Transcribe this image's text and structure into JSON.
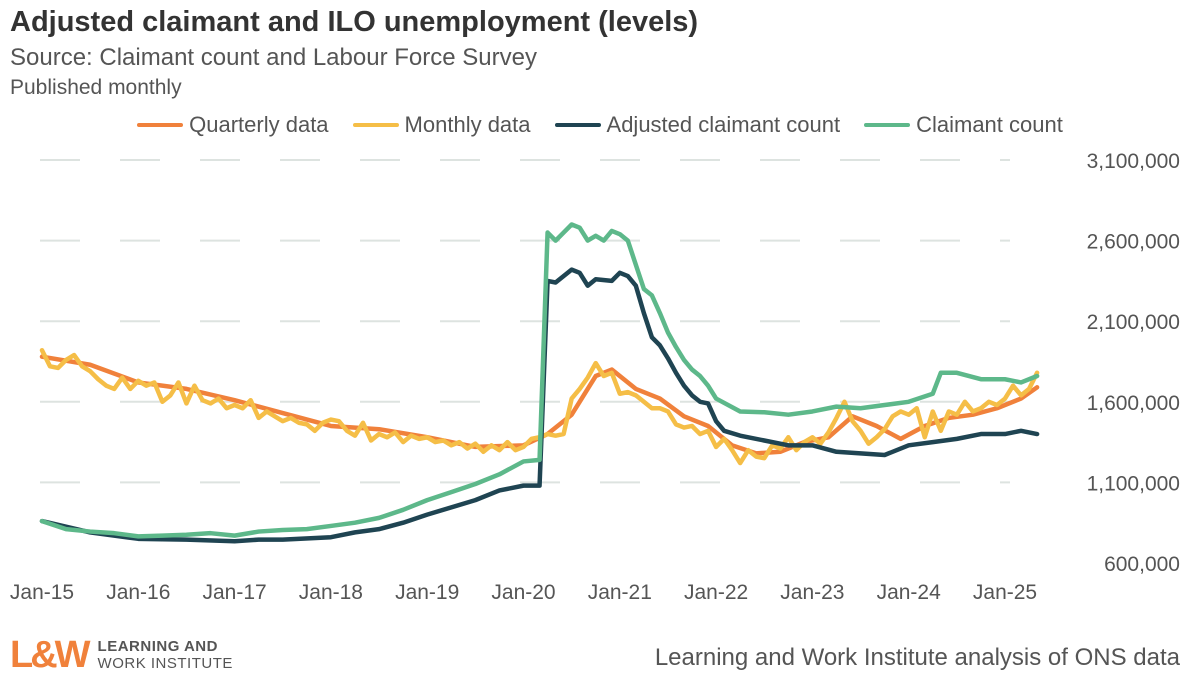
{
  "chart_data": {
    "type": "line",
    "title": "Adjusted claimant and ILO unemployment (levels)",
    "subtitle": "Source: Claimant count and Labour Force Survey",
    "frequency_note": "Published monthly",
    "xlabel": "",
    "ylabel": "",
    "x_start": "2015-01",
    "x_end": "2025-05",
    "x_ticks": [
      "Jan-15",
      "Jan-16",
      "Jan-17",
      "Jan-18",
      "Jan-19",
      "Jan-20",
      "Jan-21",
      "Jan-22",
      "Jan-23",
      "Jan-24",
      "Jan-25"
    ],
    "y_ticks": [
      "3,100,000",
      "2,600,000",
      "2,100,000",
      "1,600,000",
      "1,100,000",
      "600,000"
    ],
    "y_tick_values": [
      3100000,
      2600000,
      2100000,
      1600000,
      1100000,
      600000
    ],
    "ylim": [
      600000,
      3100000
    ],
    "grid": "horizontal dashed",
    "legend_position": "top",
    "series": [
      {
        "name": "Quarterly data",
        "color": "#F0813B",
        "points": [
          [
            "2015-01",
            1880000
          ],
          [
            "2015-07",
            1830000
          ],
          [
            "2016-01",
            1720000
          ],
          [
            "2016-07",
            1680000
          ],
          [
            "2017-01",
            1610000
          ],
          [
            "2017-07",
            1530000
          ],
          [
            "2018-01",
            1450000
          ],
          [
            "2018-07",
            1430000
          ],
          [
            "2019-01",
            1380000
          ],
          [
            "2019-07",
            1320000
          ],
          [
            "2020-01",
            1330000
          ],
          [
            "2020-04",
            1400000
          ],
          [
            "2020-07",
            1520000
          ],
          [
            "2020-10",
            1760000
          ],
          [
            "2020-12",
            1800000
          ],
          [
            "2021-03",
            1680000
          ],
          [
            "2021-06",
            1620000
          ],
          [
            "2021-09",
            1510000
          ],
          [
            "2021-12",
            1450000
          ],
          [
            "2022-03",
            1330000
          ],
          [
            "2022-06",
            1280000
          ],
          [
            "2022-09",
            1290000
          ],
          [
            "2022-12",
            1350000
          ],
          [
            "2023-03",
            1380000
          ],
          [
            "2023-06",
            1510000
          ],
          [
            "2023-09",
            1450000
          ],
          [
            "2023-12",
            1370000
          ],
          [
            "2024-03",
            1450000
          ],
          [
            "2024-06",
            1500000
          ],
          [
            "2024-09",
            1520000
          ],
          [
            "2024-12",
            1560000
          ],
          [
            "2025-03",
            1620000
          ],
          [
            "2025-05",
            1690000
          ]
        ]
      },
      {
        "name": "Monthly data",
        "color": "#F5BE47",
        "monthly_values_thousands": [
          1920,
          1820,
          1810,
          1860,
          1890,
          1820,
          1790,
          1740,
          1700,
          1680,
          1750,
          1680,
          1730,
          1700,
          1720,
          1600,
          1640,
          1720,
          1590,
          1700,
          1610,
          1590,
          1620,
          1560,
          1580,
          1560,
          1610,
          1500,
          1540,
          1510,
          1480,
          1500,
          1470,
          1460,
          1420,
          1470,
          1490,
          1480,
          1420,
          1390,
          1470,
          1360,
          1400,
          1380,
          1410,
          1350,
          1390,
          1370,
          1380,
          1350,
          1360,
          1330,
          1350,
          1310,
          1340,
          1290,
          1330,
          1300,
          1350,
          1300,
          1320,
          1370,
          1380,
          1400,
          1390,
          1400,
          1620,
          1680,
          1750,
          1840,
          1760,
          1780,
          1650,
          1660,
          1640,
          1600,
          1560,
          1560,
          1540,
          1460,
          1440,
          1450,
          1400,
          1420,
          1320,
          1370,
          1300,
          1220,
          1300,
          1260,
          1250,
          1330,
          1310,
          1380,
          1300,
          1350,
          1380,
          1340,
          1410,
          1500,
          1600,
          1480,
          1420,
          1340,
          1380,
          1430,
          1510,
          1540,
          1520,
          1560,
          1380,
          1540,
          1420,
          1540,
          1520,
          1600,
          1540,
          1560,
          1600,
          1580,
          1620,
          1700,
          1640,
          1680,
          1780
        ]
      },
      {
        "name": "Adjusted claimant count",
        "color": "#1F4452",
        "points": [
          [
            "2015-01",
            860000
          ],
          [
            "2015-07",
            790000
          ],
          [
            "2016-01",
            750000
          ],
          [
            "2016-07",
            745000
          ],
          [
            "2017-01",
            735000
          ],
          [
            "2017-04",
            745000
          ],
          [
            "2017-07",
            745000
          ],
          [
            "2018-01",
            760000
          ],
          [
            "2018-04",
            790000
          ],
          [
            "2018-07",
            810000
          ],
          [
            "2018-10",
            850000
          ],
          [
            "2019-01",
            900000
          ],
          [
            "2019-07",
            990000
          ],
          [
            "2019-10",
            1050000
          ],
          [
            "2020-01",
            1080000
          ],
          [
            "2020-03",
            1080000
          ],
          [
            "2020-04",
            2350000
          ],
          [
            "2020-05",
            2340000
          ],
          [
            "2020-07",
            2420000
          ],
          [
            "2020-08",
            2400000
          ],
          [
            "2020-09",
            2320000
          ],
          [
            "2020-10",
            2360000
          ],
          [
            "2020-12",
            2350000
          ],
          [
            "2021-01",
            2400000
          ],
          [
            "2021-02",
            2380000
          ],
          [
            "2021-03",
            2320000
          ],
          [
            "2021-04",
            2150000
          ],
          [
            "2021-05",
            2000000
          ],
          [
            "2021-06",
            1950000
          ],
          [
            "2021-07",
            1870000
          ],
          [
            "2021-08",
            1780000
          ],
          [
            "2021-09",
            1700000
          ],
          [
            "2021-10",
            1640000
          ],
          [
            "2021-11",
            1600000
          ],
          [
            "2021-12",
            1590000
          ],
          [
            "2022-01",
            1480000
          ],
          [
            "2022-02",
            1420000
          ],
          [
            "2022-04",
            1390000
          ],
          [
            "2022-07",
            1360000
          ],
          [
            "2022-10",
            1330000
          ],
          [
            "2023-01",
            1330000
          ],
          [
            "2023-04",
            1290000
          ],
          [
            "2023-07",
            1280000
          ],
          [
            "2023-10",
            1270000
          ],
          [
            "2024-01",
            1330000
          ],
          [
            "2024-04",
            1350000
          ],
          [
            "2024-07",
            1370000
          ],
          [
            "2024-10",
            1400000
          ],
          [
            "2025-01",
            1400000
          ],
          [
            "2025-03",
            1420000
          ],
          [
            "2025-05",
            1400000
          ]
        ]
      },
      {
        "name": "Claimant count",
        "color": "#5DB88A",
        "points": [
          [
            "2015-01",
            860000
          ],
          [
            "2015-04",
            810000
          ],
          [
            "2015-07",
            795000
          ],
          [
            "2015-10",
            785000
          ],
          [
            "2016-01",
            765000
          ],
          [
            "2016-04",
            770000
          ],
          [
            "2016-07",
            775000
          ],
          [
            "2016-10",
            785000
          ],
          [
            "2017-01",
            770000
          ],
          [
            "2017-04",
            795000
          ],
          [
            "2017-07",
            805000
          ],
          [
            "2017-10",
            810000
          ],
          [
            "2018-01",
            830000
          ],
          [
            "2018-04",
            850000
          ],
          [
            "2018-07",
            880000
          ],
          [
            "2018-10",
            930000
          ],
          [
            "2019-01",
            990000
          ],
          [
            "2019-04",
            1040000
          ],
          [
            "2019-07",
            1090000
          ],
          [
            "2019-10",
            1150000
          ],
          [
            "2020-01",
            1230000
          ],
          [
            "2020-03",
            1240000
          ],
          [
            "2020-04",
            2650000
          ],
          [
            "2020-05",
            2600000
          ],
          [
            "2020-06",
            2650000
          ],
          [
            "2020-07",
            2700000
          ],
          [
            "2020-08",
            2680000
          ],
          [
            "2020-09",
            2600000
          ],
          [
            "2020-10",
            2630000
          ],
          [
            "2020-11",
            2600000
          ],
          [
            "2020-12",
            2660000
          ],
          [
            "2021-01",
            2640000
          ],
          [
            "2021-02",
            2600000
          ],
          [
            "2021-03",
            2450000
          ],
          [
            "2021-04",
            2300000
          ],
          [
            "2021-05",
            2260000
          ],
          [
            "2021-06",
            2150000
          ],
          [
            "2021-07",
            2030000
          ],
          [
            "2021-08",
            1940000
          ],
          [
            "2021-09",
            1860000
          ],
          [
            "2021-10",
            1800000
          ],
          [
            "2021-11",
            1760000
          ],
          [
            "2021-12",
            1700000
          ],
          [
            "2022-01",
            1620000
          ],
          [
            "2022-04",
            1540000
          ],
          [
            "2022-07",
            1535000
          ],
          [
            "2022-10",
            1520000
          ],
          [
            "2023-01",
            1540000
          ],
          [
            "2023-04",
            1570000
          ],
          [
            "2023-07",
            1560000
          ],
          [
            "2023-10",
            1580000
          ],
          [
            "2024-01",
            1600000
          ],
          [
            "2024-04",
            1650000
          ],
          [
            "2024-05",
            1780000
          ],
          [
            "2024-07",
            1780000
          ],
          [
            "2024-10",
            1740000
          ],
          [
            "2025-01",
            1740000
          ],
          [
            "2025-03",
            1720000
          ],
          [
            "2025-05",
            1760000
          ]
        ]
      }
    ]
  },
  "footer": {
    "logo_mark": "L&W",
    "logo_line1": "LEARNING AND",
    "logo_line2": "WORK INSTITUTE",
    "source_note": "Learning and Work Institute analysis of ONS data"
  }
}
